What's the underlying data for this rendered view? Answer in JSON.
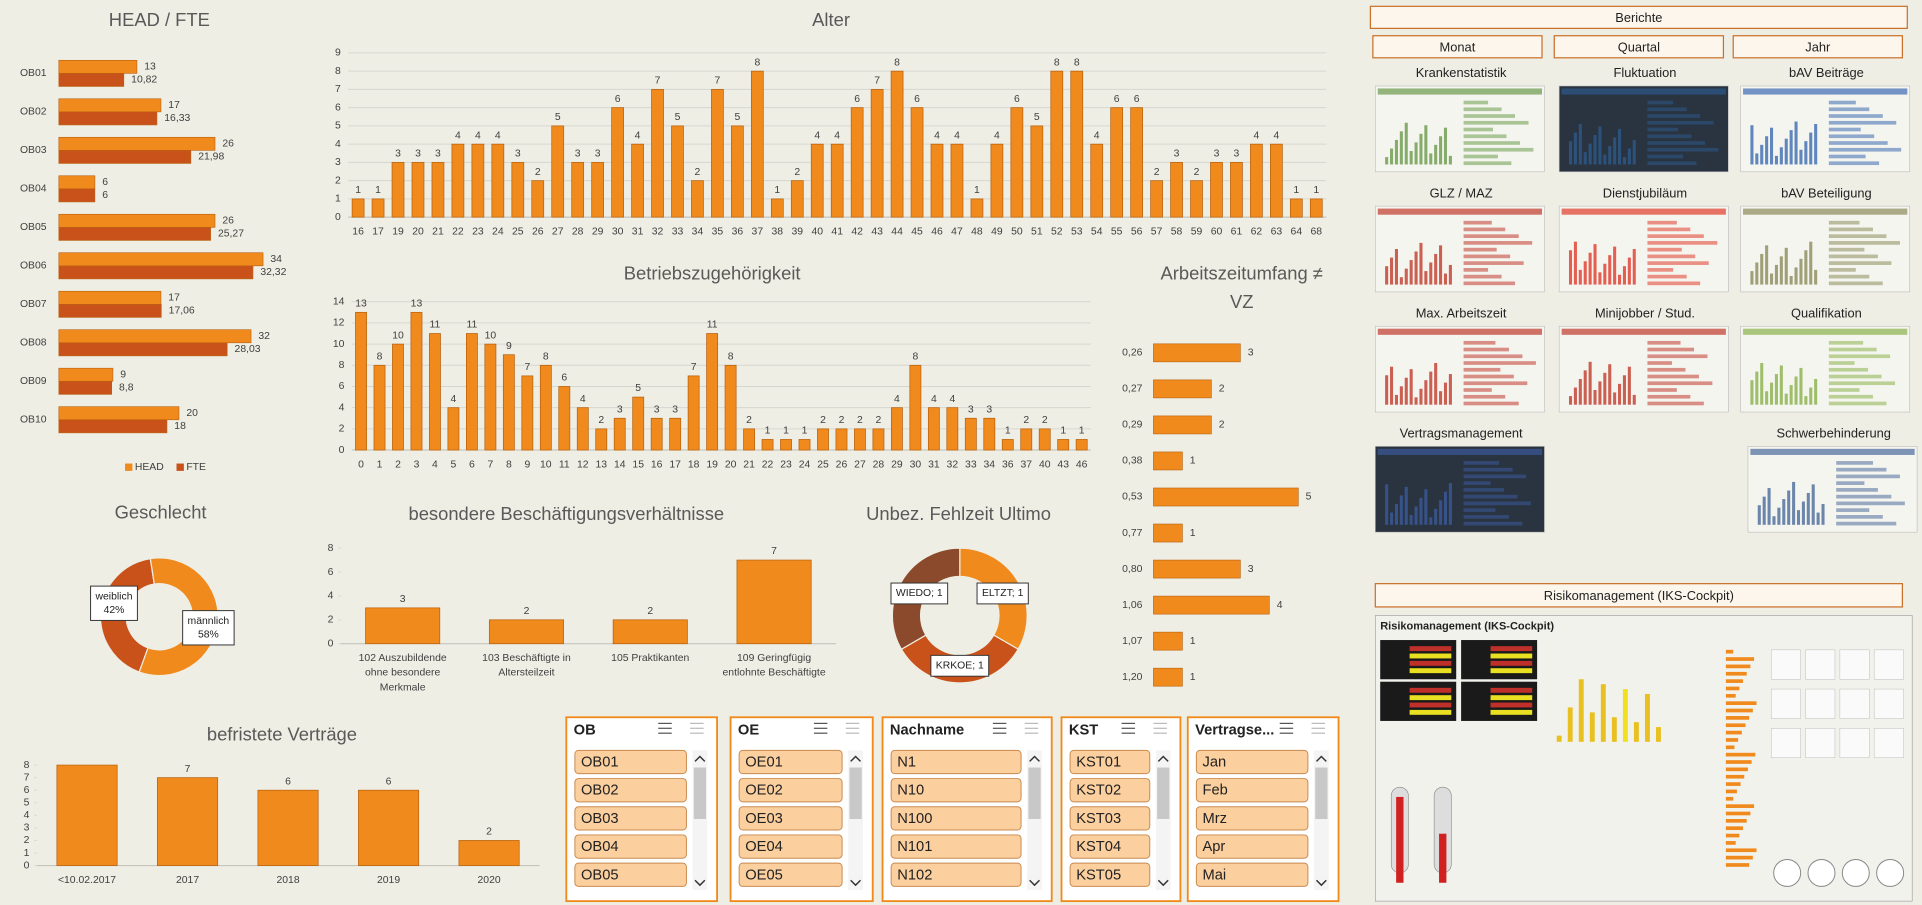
{
  "chart_data": [
    {
      "type": "hbar",
      "title": "HEAD / FTE",
      "categories": [
        "OB01",
        "OB02",
        "OB03",
        "OB04",
        "OB05",
        "OB06",
        "OB07",
        "OB08",
        "OB09",
        "OB10"
      ],
      "series": [
        {
          "name": "HEAD",
          "color": "#f08a1c",
          "values": [
            13,
            17,
            26,
            6,
            26,
            34,
            17,
            32,
            9,
            20
          ]
        },
        {
          "name": "FTE",
          "color": "#c9521b",
          "values": [
            10.82,
            16.33,
            21.98,
            6,
            25.27,
            32.32,
            17.06,
            28.03,
            8.8,
            18
          ],
          "value_labels": [
            "10,82",
            "16,33",
            "21,98",
            "6",
            "25,27",
            "32,32",
            "17,06",
            "28,03",
            "8,8",
            "18"
          ]
        }
      ],
      "xlim": [
        0,
        40
      ],
      "legend": "bottom"
    },
    {
      "type": "bar",
      "title": "Alter",
      "categories": [
        "16",
        "17",
        "19",
        "20",
        "21",
        "22",
        "23",
        "24",
        "25",
        "26",
        "27",
        "28",
        "29",
        "30",
        "31",
        "32",
        "33",
        "34",
        "35",
        "36",
        "37",
        "38",
        "39",
        "40",
        "41",
        "42",
        "43",
        "44",
        "45",
        "46",
        "47",
        "48",
        "49",
        "50",
        "51",
        "52",
        "53",
        "54",
        "55",
        "56",
        "57",
        "58",
        "59",
        "60",
        "61",
        "62",
        "63",
        "64",
        "68"
      ],
      "values": [
        1,
        1,
        3,
        3,
        3,
        4,
        4,
        4,
        3,
        2,
        5,
        3,
        3,
        6,
        4,
        7,
        5,
        2,
        7,
        5,
        8,
        1,
        2,
        4,
        4,
        6,
        7,
        8,
        6,
        4,
        4,
        1,
        4,
        6,
        5,
        8,
        8,
        4,
        6,
        6,
        2,
        3,
        2,
        3,
        3,
        4,
        4,
        1,
        1
      ],
      "color": "#f08a1c",
      "ylim": [
        0,
        9
      ],
      "yticks": [
        0,
        1,
        2,
        3,
        4,
        5,
        6,
        7,
        8,
        9
      ],
      "grid": true
    },
    {
      "type": "bar",
      "title": "Betriebszugehörigkeit",
      "categories": [
        "0",
        "1",
        "2",
        "3",
        "4",
        "5",
        "6",
        "7",
        "8",
        "9",
        "10",
        "11",
        "12",
        "13",
        "14",
        "15",
        "16",
        "17",
        "18",
        "19",
        "20",
        "21",
        "22",
        "23",
        "24",
        "25",
        "26",
        "27",
        "28",
        "29",
        "30",
        "31",
        "32",
        "33",
        "34",
        "36",
        "37",
        "40",
        "43",
        "46"
      ],
      "values": [
        13,
        8,
        10,
        13,
        11,
        4,
        11,
        10,
        9,
        7,
        8,
        6,
        4,
        2,
        3,
        5,
        3,
        3,
        7,
        11,
        8,
        2,
        1,
        1,
        1,
        2,
        2,
        2,
        2,
        4,
        8,
        4,
        4,
        3,
        3,
        1,
        2,
        2,
        1,
        1
      ],
      "color": "#f08a1c",
      "ylim": [
        0,
        14
      ],
      "yticks": [
        0,
        2,
        4,
        6,
        8,
        10,
        12,
        14
      ],
      "grid": true
    },
    {
      "type": "hbar",
      "title": "Arbeitszeitumfang ≠ VZ",
      "categories": [
        "0,26",
        "0,27",
        "0,29",
        "0,38",
        "0,53",
        "0,77",
        "0,80",
        "1,06",
        "1,07",
        "1,20"
      ],
      "series": [
        {
          "color": "#f08a1c",
          "values": [
            3,
            2,
            2,
            1,
            5,
            1,
            3,
            4,
            1,
            1
          ]
        }
      ],
      "xlim": [
        0,
        5.5
      ]
    },
    {
      "type": "pie",
      "title": "Geschlecht",
      "categories": [
        "weiblich",
        "männlich"
      ],
      "values": [
        42,
        58
      ],
      "value_labels": [
        "42%",
        "58%"
      ],
      "colors": [
        "#c9521b",
        "#f08a1c"
      ],
      "donut": true
    },
    {
      "type": "bar",
      "title": "besondere Beschäftigungsverhältnisse",
      "categories": [
        "102 Auszubildende ohne besondere Merkmale",
        "103 Beschäftigte in Altersteilzeit",
        "105 Praktikanten",
        "109 Geringfügig entlohnte Beschäftigte"
      ],
      "values": [
        3,
        2,
        2,
        7
      ],
      "color": "#f08a1c",
      "ylim": [
        0,
        8
      ],
      "yticks": [
        0,
        2,
        4,
        6,
        8
      ],
      "grid": false
    },
    {
      "type": "pie",
      "title": "Unbez. Fehlzeit Ultimo",
      "labels": [
        "ELTZT; 1",
        "KRKOE; 1",
        "WIEDO; 1"
      ],
      "values": [
        1,
        1,
        1
      ],
      "colors": [
        "#f08a1c",
        "#c9521b",
        "#8b4a2b"
      ],
      "donut": true
    },
    {
      "type": "bar",
      "title": "befristete Verträge",
      "categories": [
        "<10.02.2017",
        "2017",
        "2018",
        "2019",
        "2020"
      ],
      "values": [
        8,
        7,
        6,
        6,
        2
      ],
      "value_labels": [
        null,
        "7",
        "6",
        "6",
        "2"
      ],
      "color": "#f08a1c",
      "ylim": [
        0,
        8
      ],
      "yticks": [
        0,
        1,
        2,
        3,
        4,
        5,
        6,
        7,
        8
      ],
      "grid": false
    }
  ],
  "slicers": [
    {
      "title": "OB",
      "items": [
        "OB01",
        "OB02",
        "OB03",
        "OB04",
        "OB05"
      ]
    },
    {
      "title": "OE",
      "items": [
        "OE01",
        "OE02",
        "OE03",
        "OE04",
        "OE05"
      ]
    },
    {
      "title": "Nachname",
      "items": [
        "N1",
        "N10",
        "N100",
        "N101",
        "N102"
      ]
    },
    {
      "title": "KST",
      "items": [
        "KST01",
        "KST02",
        "KST03",
        "KST04",
        "KST05"
      ]
    },
    {
      "title": "Vertragse...",
      "items": [
        "Jan",
        "Feb",
        "Mrz",
        "Apr",
        "Mai"
      ]
    }
  ],
  "reports": {
    "title": "Berichte",
    "periods": [
      "Monat",
      "Quartal",
      "Jahr"
    ],
    "items": [
      "Krankenstatistik",
      "Fluktuation",
      "bAV Beiträge",
      "GLZ / MAZ",
      "Dienstjubiläum",
      "bAV Beteiligung",
      "Max. Arbeitszeit",
      "Minijobber / Stud.",
      "Qualifikation",
      "Vertragsmanagement",
      "Schwerbehinderung"
    ],
    "risk_title": "Risikomanagement (IKS-Cockpit)",
    "risk_thumb_title": "Risikomanagement (IKS-Cockpit)"
  }
}
